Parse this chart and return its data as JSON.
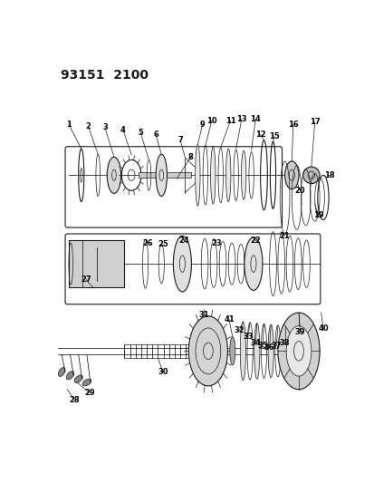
{
  "title": "93151  2100",
  "bg_color": "#ffffff",
  "line_color": "#1a1a1a",
  "title_fontsize": 10,
  "label_fontsize": 6,
  "figsize": [
    4.14,
    5.33
  ],
  "dpi": 100
}
